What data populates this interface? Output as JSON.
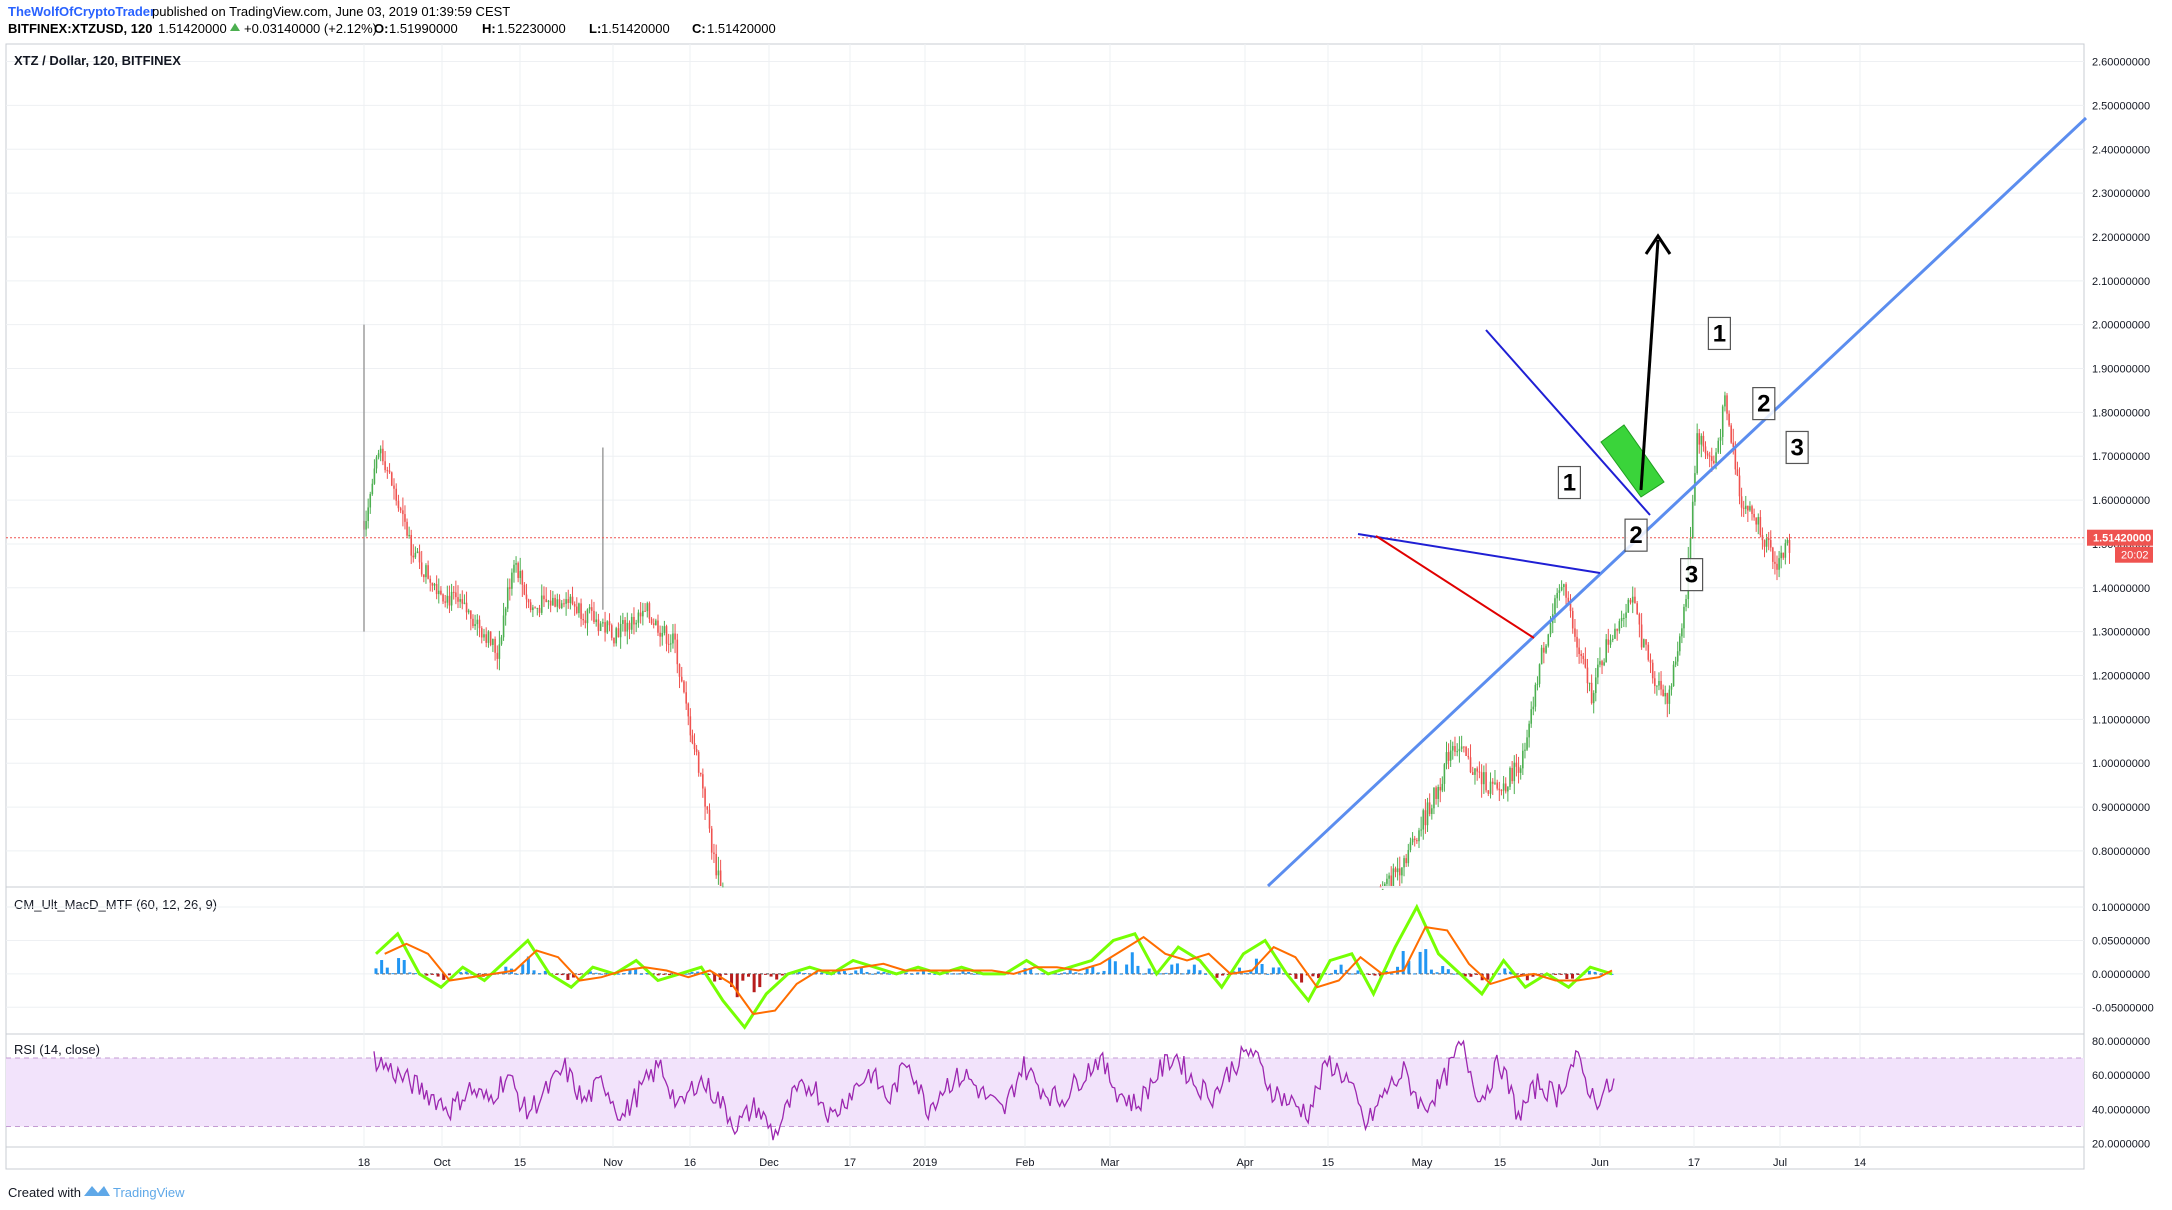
{
  "header": {
    "author": "TheWolfOfCryptoTrader",
    "published": "published on TradingView.com, June 03, 2019 01:39:59 CEST",
    "symbol": "BITFINEX:XTZUSD, 120",
    "last": "1.51420000",
    "change": "+0.03140000 (+2.12%)",
    "o_label": "O:",
    "o": "1.51990000",
    "h_label": "H:",
    "h": "1.52230000",
    "l_label": "L:",
    "l": "1.51420000",
    "c_label": "C:",
    "c": "1.51420000"
  },
  "footer": {
    "created_with": "Created with",
    "brand": "TradingView"
  },
  "colors": {
    "up": "#4caf50",
    "down": "#ef5350",
    "grid": "#eef0f3",
    "trend": "#5b8def",
    "blue_line": "#1f1fd4",
    "red_line": "#e00000",
    "arrow": "#000000",
    "green_box": "#3ad43a",
    "rsi_band": "#f2e3fb",
    "rsi_line": "#9c27b0",
    "price_tag": "#ef5350"
  },
  "chart_data": [
    {
      "type": "candlestick",
      "title": "XTZ / Dollar, 120, BITFINEX",
      "x_ticks": [
        "18",
        "Oct",
        "15",
        "Nov",
        "16",
        "Dec",
        "17",
        "2019",
        "Feb",
        "Mar",
        "Apr",
        "15",
        "May",
        "15",
        "Jun",
        "17",
        "Jul",
        "14"
      ],
      "y_ticks": [
        "2.60000000",
        "2.50000000",
        "2.40000000",
        "2.30000000",
        "2.20000000",
        "2.10000000",
        "2.00000000",
        "1.90000000",
        "1.80000000",
        "1.70000000",
        "1.60000000",
        "1.50000000",
        "1.40000000",
        "1.30000000",
        "1.20000000",
        "1.10000000",
        "1.00000000",
        "0.90000000",
        "0.80000000"
      ],
      "ylim": [
        0.72,
        2.64
      ],
      "grid": true,
      "last_price": "1.51420000",
      "countdown": "20:02",
      "price_path": [
        [
          "2018-09-18",
          1.55
        ],
        [
          "2018-09-21",
          1.72
        ],
        [
          "2018-09-25",
          1.55
        ],
        [
          "2018-09-28",
          1.45
        ],
        [
          "2018-10-03",
          1.38
        ],
        [
          "2018-10-08",
          1.33
        ],
        [
          "2018-10-12",
          1.25
        ],
        [
          "2018-10-15",
          1.47
        ],
        [
          "2018-10-18",
          1.35
        ],
        [
          "2018-10-24",
          1.38
        ],
        [
          "2018-10-29",
          1.33
        ],
        [
          "2018-11-02",
          1.3
        ],
        [
          "2018-11-08",
          1.34
        ],
        [
          "2018-11-13",
          1.27
        ],
        [
          "2018-11-15",
          1.12
        ],
        [
          "2018-11-18",
          0.95
        ],
        [
          "2018-11-20",
          0.78
        ],
        [
          "2018-11-22",
          0.7
        ],
        [
          "2019-03-20",
          0.7
        ],
        [
          "2019-03-25",
          0.8
        ],
        [
          "2019-03-30",
          0.93
        ],
        [
          "2019-04-02",
          1.05
        ],
        [
          "2019-04-06",
          0.98
        ],
        [
          "2019-04-10",
          0.93
        ],
        [
          "2019-04-15",
          1.02
        ],
        [
          "2019-04-18",
          1.25
        ],
        [
          "2019-04-22",
          1.42
        ],
        [
          "2019-04-24",
          1.28
        ],
        [
          "2019-04-27",
          1.16
        ],
        [
          "2019-04-30",
          1.28
        ],
        [
          "2019-05-04",
          1.38
        ],
        [
          "2019-05-08",
          1.2
        ],
        [
          "2019-05-11",
          1.15
        ],
        [
          "2019-05-14",
          1.38
        ],
        [
          "2019-05-16",
          1.75
        ],
        [
          "2019-05-19",
          1.68
        ],
        [
          "2019-05-21",
          1.82
        ],
        [
          "2019-05-24",
          1.6
        ],
        [
          "2019-05-27",
          1.55
        ],
        [
          "2019-05-30",
          1.45
        ],
        [
          "2019-06-02",
          1.51
        ]
      ],
      "wicks": [
        {
          "date": "2018-09-18",
          "high": 2.0,
          "low": 1.3
        },
        {
          "date": "2018-10-31",
          "high": 1.72,
          "low": 1.35
        }
      ],
      "annotations": [
        {
          "kind": "label",
          "text": "1",
          "date": "2019-04-23",
          "price": 1.64
        },
        {
          "kind": "label",
          "text": "2",
          "date": "2019-05-05",
          "price": 1.52
        },
        {
          "kind": "label",
          "text": "3",
          "date": "2019-05-15",
          "price": 1.43
        },
        {
          "kind": "label",
          "text": "1",
          "date": "2019-05-20",
          "price": 1.98
        },
        {
          "kind": "label",
          "text": "2",
          "date": "2019-05-28",
          "price": 1.82
        },
        {
          "kind": "label",
          "text": "3",
          "date": "2019-06-03",
          "price": 1.72
        }
      ]
    },
    {
      "type": "line",
      "title": "CM_Ult_MacD_MTF (60, 12, 26, 9)",
      "y_ticks": [
        "0.10000000",
        "0.05000000",
        "0.00000000",
        "-0.05000000"
      ],
      "ylim": [
        -0.09,
        0.13
      ],
      "series": [
        {
          "values": [
            0.03,
            0.06,
            0.0,
            -0.02,
            0.01,
            -0.01,
            0.02,
            0.05,
            0.0,
            -0.02,
            0.01,
            0.0,
            0.02,
            -0.01,
            0.0,
            0.01,
            -0.04,
            -0.08,
            -0.03,
            0.0,
            0.01,
            0.0,
            0.02,
            0.01,
            0.0,
            0.01,
            0.0,
            0.01,
            0.0,
            0.0,
            0.02,
            0.0,
            0.01,
            0.02,
            0.05,
            0.06,
            0.0,
            0.04,
            0.02,
            -0.02,
            0.03,
            0.05,
            0.0,
            -0.04,
            0.02,
            0.03,
            -0.03,
            0.04,
            0.1,
            0.03,
            0.0,
            -0.03,
            0.02,
            -0.02,
            0.0,
            -0.02,
            0.01,
            0.0
          ]
        }
      ]
    },
    {
      "type": "line",
      "title": "RSI (14, close)",
      "y_ticks": [
        "80.0000000",
        "60.0000000",
        "40.0000000",
        "20.0000000"
      ],
      "ylim": [
        18,
        84
      ],
      "band": [
        30,
        70
      ],
      "series": [
        {
          "values": [
            70,
            62,
            55,
            48,
            40,
            52,
            45,
            60,
            38,
            50,
            64,
            44,
            57,
            35,
            52,
            66,
            40,
            58,
            47,
            30,
            42,
            25,
            48,
            55,
            35,
            50,
            62,
            45,
            70,
            40,
            55,
            60,
            48,
            38,
            66,
            52,
            45,
            58,
            70,
            50,
            42,
            60,
            72,
            55,
            48,
            65,
            75,
            52,
            44,
            38,
            68,
            58,
            30,
            50,
            62,
            40,
            55,
            78,
            45,
            68,
            36,
            55,
            48,
            70,
            45,
            55
          ]
        }
      ]
    }
  ]
}
